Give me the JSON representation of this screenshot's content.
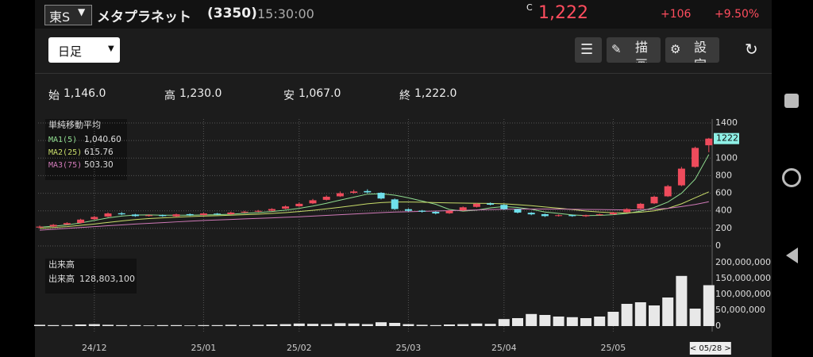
{
  "header": {
    "market": "東S",
    "name": "メタプラネット",
    "code": "(3350)",
    "time": "15:30:00",
    "price_mark": "C",
    "price": "1,222",
    "change": "+106",
    "change_pct": "+9.50%"
  },
  "toolbar": {
    "period": "日足",
    "draw": "描画",
    "settings": "設定"
  },
  "ohlc": {
    "open_label": "始",
    "open": "1,146.0",
    "high_label": "高",
    "high": "1,230.0",
    "low_label": "安",
    "low": "1,067.0",
    "close_label": "終",
    "close": "1,222.0"
  },
  "chart_data": [
    {
      "type": "candlestick",
      "legend_title": "単純移動平均",
      "up_color": "#ee4b5c",
      "down_color": "#6fe0ec",
      "categories": [
        null,
        null,
        null,
        null,
        "24/12",
        null,
        null,
        null,
        null,
        null,
        null,
        null,
        "25/01",
        null,
        null,
        null,
        null,
        null,
        null,
        "25/02",
        null,
        null,
        null,
        null,
        null,
        null,
        null,
        "25/03",
        null,
        null,
        null,
        null,
        null,
        null,
        "25/04",
        null,
        null,
        null,
        null,
        null,
        null,
        null,
        "25/05",
        null,
        null,
        null,
        null,
        null,
        null,
        "< 05/28 >"
      ],
      "open": [
        210,
        222,
        245,
        262,
        305,
        335,
        372,
        358,
        342,
        352,
        338,
        362,
        352,
        368,
        362,
        382,
        392,
        402,
        425,
        452,
        485,
        525,
        565,
        605,
        625,
        605,
        530,
        418,
        402,
        388,
        372,
        405,
        445,
        485,
        468,
        418,
        378,
        362,
        342,
        352,
        338,
        352,
        362,
        385,
        425,
        485,
        565,
        690,
        900,
        1146
      ],
      "high": [
        232,
        250,
        270,
        310,
        342,
        382,
        385,
        365,
        360,
        358,
        368,
        370,
        378,
        375,
        390,
        400,
        410,
        430,
        462,
        495,
        535,
        575,
        620,
        640,
        645,
        612,
        540,
        428,
        410,
        395,
        408,
        450,
        490,
        495,
        475,
        425,
        385,
        368,
        358,
        358,
        356,
        368,
        388,
        430,
        490,
        572,
        695,
        900,
        1130,
        1230
      ],
      "low": [
        200,
        215,
        238,
        255,
        298,
        328,
        350,
        332,
        335,
        332,
        330,
        342,
        345,
        352,
        355,
        375,
        385,
        395,
        418,
        445,
        478,
        518,
        558,
        595,
        600,
        530,
        410,
        390,
        380,
        360,
        365,
        398,
        438,
        462,
        410,
        370,
        350,
        330,
        335,
        332,
        330,
        345,
        355,
        378,
        418,
        478,
        558,
        680,
        890,
        1067
      ],
      "close": [
        220,
        240,
        260,
        300,
        330,
        370,
        360,
        340,
        350,
        340,
        360,
        350,
        370,
        360,
        380,
        390,
        400,
        420,
        450,
        480,
        520,
        560,
        600,
        620,
        610,
        540,
        420,
        400,
        390,
        370,
        400,
        440,
        480,
        470,
        420,
        380,
        360,
        340,
        350,
        340,
        350,
        360,
        380,
        420,
        480,
        560,
        680,
        880,
        1116,
        1222
      ],
      "series": [
        {
          "name": "MA1(5)",
          "color": "#8fdc8f",
          "last_label": "1,040.60",
          "values": [
            215,
            225,
            240,
            262,
            290,
            320,
            340,
            352,
            354,
            350,
            350,
            350,
            354,
            356,
            362,
            372,
            380,
            392,
            408,
            428,
            454,
            486,
            522,
            556,
            590,
            594,
            578,
            548,
            512,
            474,
            416,
            396,
            408,
            434,
            448,
            438,
            418,
            386,
            370,
            354,
            346,
            348,
            356,
            370,
            396,
            438,
            500,
            600,
            760,
            1040.6
          ]
        },
        {
          "name": "MA2(25)",
          "color": "#c8dc6a",
          "last_label": "615.76",
          "values": [
            200,
            210,
            220,
            235,
            250,
            268,
            285,
            300,
            312,
            320,
            328,
            334,
            340,
            345,
            350,
            356,
            362,
            370,
            380,
            392,
            406,
            422,
            440,
            460,
            480,
            494,
            500,
            500,
            498,
            494,
            490,
            488,
            486,
            484,
            480,
            470,
            458,
            444,
            430,
            414,
            398,
            386,
            378,
            376,
            384,
            400,
            428,
            480,
            548,
            615.76
          ]
        },
        {
          "name": "MA3(75)",
          "color": "#d07ab8",
          "last_label": "503.30",
          "values": [
            180,
            190,
            200,
            210,
            220,
            230,
            240,
            250,
            258,
            266,
            274,
            282,
            290,
            296,
            302,
            308,
            314,
            320,
            326,
            332,
            340,
            348,
            356,
            364,
            372,
            380,
            386,
            390,
            394,
            398,
            402,
            406,
            410,
            414,
            418,
            420,
            420,
            420,
            420,
            418,
            416,
            414,
            412,
            410,
            412,
            418,
            428,
            448,
            472,
            503.3
          ]
        }
      ],
      "ylim": [
        -90,
        1445
      ],
      "yticks": [
        0,
        200,
        400,
        600,
        800,
        1000,
        1200,
        1400
      ],
      "grid": true,
      "price_tag_color": "#8ef0e6"
    },
    {
      "type": "bar",
      "title": "出来高",
      "legend_name": "出来高",
      "legend_value": "128,803,100",
      "color": "#e8e8e8",
      "values": [
        4000000,
        3000000,
        3000000,
        5000000,
        6000000,
        4000000,
        3000000,
        3000000,
        2000000,
        3000000,
        3000000,
        2000000,
        3000000,
        3000000,
        4000000,
        3000000,
        4000000,
        5000000,
        6000000,
        8000000,
        7000000,
        6000000,
        9000000,
        8000000,
        6000000,
        12000000,
        10000000,
        6000000,
        4000000,
        3000000,
        5000000,
        6000000,
        8000000,
        7000000,
        22000000,
        25000000,
        38000000,
        35000000,
        30000000,
        28000000,
        25000000,
        30000000,
        45000000,
        70000000,
        75000000,
        65000000,
        90000000,
        158000000,
        55000000,
        128803100
      ],
      "ylim": [
        -17500000,
        215000000
      ],
      "yticks": [
        0,
        {
          "value": 50000000,
          "label": "50,000,000"
        },
        {
          "value": 100000000,
          "label": "100,000,000"
        },
        {
          "value": 150000000,
          "label": "150,000,000"
        },
        {
          "value": 200000000,
          "label": "200,000,000"
        }
      ]
    }
  ]
}
